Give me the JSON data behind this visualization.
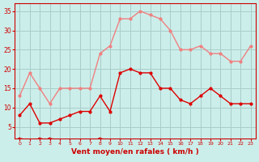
{
  "hours": [
    0,
    1,
    2,
    3,
    4,
    5,
    6,
    7,
    8,
    9,
    10,
    11,
    12,
    13,
    14,
    15,
    16,
    17,
    18,
    19,
    20,
    21,
    22,
    23
  ],
  "wind_avg": [
    8,
    11,
    6,
    6,
    7,
    8,
    9,
    9,
    13,
    9,
    19,
    20,
    19,
    19,
    15,
    15,
    12,
    11,
    13,
    15,
    13,
    11,
    11,
    11
  ],
  "wind_gust": [
    13,
    19,
    15,
    11,
    15,
    15,
    15,
    15,
    24,
    26,
    33,
    33,
    35,
    34,
    33,
    30,
    25,
    25,
    26,
    24,
    24,
    22,
    22,
    26
  ],
  "color_avg": "#dd0000",
  "color_gust": "#f08080",
  "bg_color": "#cceeea",
  "grid_color": "#aaccca",
  "axis_color": "#cc0000",
  "xlabel": "Vent moyen/en rafales ( km/h )",
  "yticks": [
    5,
    10,
    15,
    20,
    25,
    30,
    35
  ],
  "ylim": [
    2,
    37
  ],
  "xlim": [
    -0.5,
    23.5
  ],
  "arrow_angles_deg": [
    270,
    225,
    270,
    270,
    225,
    225,
    225,
    225,
    270,
    225,
    180,
    180,
    180,
    180,
    180,
    180,
    180,
    180,
    180,
    180,
    180,
    180,
    225,
    225
  ]
}
